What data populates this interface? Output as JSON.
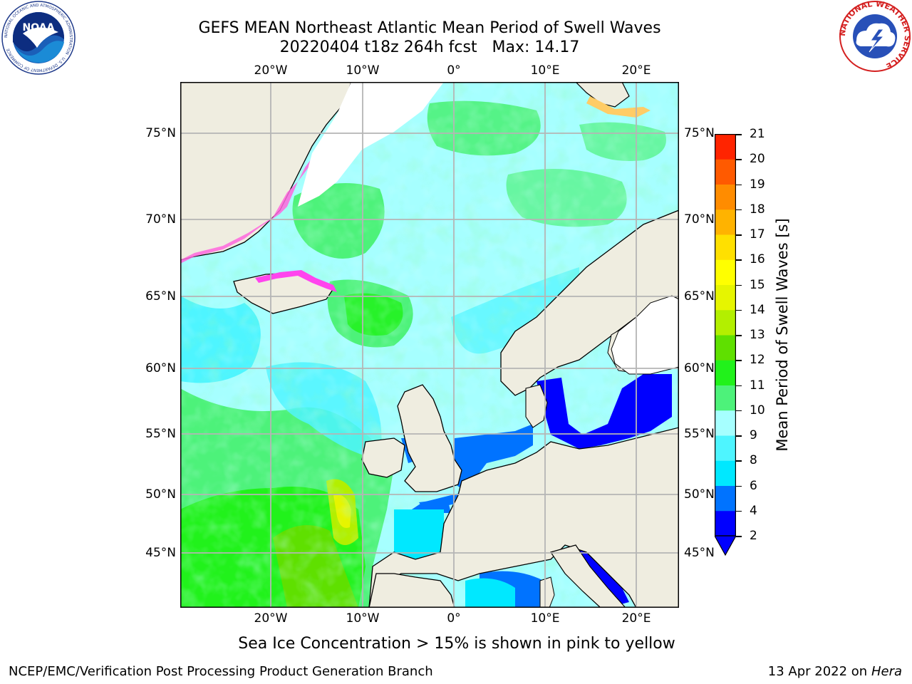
{
  "header": {
    "title_line1": "GEFS MEAN Northeast Atlantic Mean Period of Swell Waves",
    "title_line2": "20220404 t18z 264h fcst   Max: 14.17"
  },
  "logos": {
    "left": {
      "name": "noaa-logo",
      "text": "NOAA",
      "ring_text": "NATIONAL OCEANIC AND ATMOSPHERIC ADMINISTRATION · U.S. DEPARTMENT OF COMMERCE"
    },
    "right": {
      "name": "nws-logo",
      "ring_text": "NATIONAL WEATHER SERVICE"
    }
  },
  "map": {
    "lon_ticks_top": [
      "20°W",
      "10°W",
      "0°",
      "10°E",
      "20°E"
    ],
    "lon_ticks_bottom": [
      "20°W",
      "10°W",
      "0°",
      "10°E",
      "20°E"
    ],
    "lat_ticks_left": [
      "75°N",
      "70°N",
      "65°N",
      "60°N",
      "55°N",
      "50°N",
      "45°N"
    ],
    "lat_ticks_right": [
      "75°N",
      "70°N",
      "65°N",
      "60°N",
      "55°N",
      "50°N",
      "45°N"
    ],
    "colors": {
      "land": "#efede0",
      "ice_white": "#ffffff",
      "grid": "#b5b5b5"
    },
    "sea_ice_note": "Sea Ice Concentration > 15% is shown in pink to yellow"
  },
  "colorbar": {
    "title": "Mean Period of Swell Waves [s]",
    "levels": [
      "2",
      "4",
      "6",
      "8",
      "9",
      "10",
      "11",
      "12",
      "13",
      "14",
      "15",
      "16",
      "17",
      "18",
      "19",
      "20",
      "21"
    ],
    "colors": [
      "#0000ff",
      "#0073ff",
      "#00e8ff",
      "#4ef5ff",
      "#a6ffff",
      "#4df27a",
      "#21f21b",
      "#5fe000",
      "#b3ef00",
      "#e6f500",
      "#ffff00",
      "#ffe000",
      "#ffb300",
      "#ff8c00",
      "#ff5a00",
      "#ff2400"
    ],
    "under_color": "#0000ff"
  },
  "footer": {
    "left": "NCEP/EMC/Verification Post Processing Product Generation Branch",
    "right_date": "13 Apr 2022 on",
    "right_host": "Hera"
  }
}
